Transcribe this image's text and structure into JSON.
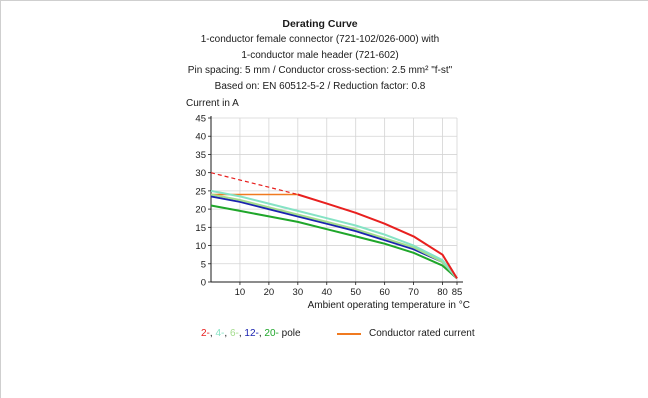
{
  "title": "Derating Curve",
  "subtitle_lines": [
    "1-conductor female connector (721-102/026-000) with",
    "1-conductor male header (721-602)",
    "Pin spacing: 5 mm / Conductor cross-section: 2.5 mm² \"f-st\"",
    "Based on: EN 60512-5-2 / Reduction factor: 0.8"
  ],
  "legend": {
    "pole_items": [
      {
        "text": "2-",
        "color": "#e8201f"
      },
      {
        "text": "4-",
        "color": "#86e3c5"
      },
      {
        "text": "6-",
        "color": "#a3dc8c"
      },
      {
        "text": "12-",
        "color": "#1a22b0"
      },
      {
        "text": "20-",
        "color": "#1fa62a"
      }
    ],
    "pole_suffix": "pole",
    "separator": ", ",
    "rated_label": "Conductor rated current",
    "rated_color": "#f07a20"
  },
  "chart_data": {
    "type": "line",
    "title": "Derating Curve",
    "xlabel": "Ambient operating temperature in °C",
    "ylabel": "Current in A",
    "xlim": [
      0,
      85
    ],
    "ylim": [
      0,
      45
    ],
    "xticks": [
      10,
      20,
      30,
      40,
      50,
      60,
      70,
      80,
      85
    ],
    "yticks": [
      0,
      5,
      10,
      15,
      20,
      25,
      30,
      35,
      40,
      45
    ],
    "grid": true,
    "series": [
      {
        "name": "2-pole",
        "color": "#e8201f",
        "x": [
          30,
          40,
          50,
          60,
          70,
          80,
          85
        ],
        "y": [
          24.0,
          21.5,
          19.0,
          16.0,
          12.5,
          7.5,
          1.0
        ],
        "dashed_prefix": {
          "x": [
            0,
            10,
            20,
            30
          ],
          "y": [
            30.0,
            28.0,
            26.0,
            24.0
          ]
        }
      },
      {
        "name": "4-pole",
        "color": "#86e3c5",
        "x": [
          0,
          10,
          20,
          30,
          40,
          50,
          60,
          70,
          80,
          85
        ],
        "y": [
          25.0,
          23.5,
          21.5,
          19.5,
          17.5,
          15.5,
          13.0,
          10.0,
          6.0,
          1.0
        ]
      },
      {
        "name": "6-pole",
        "color": "#a3dc8c",
        "x": [
          0,
          10,
          20,
          30,
          40,
          50,
          60,
          70,
          80,
          85
        ],
        "y": [
          24.0,
          22.5,
          20.5,
          18.5,
          16.5,
          14.5,
          12.0,
          9.5,
          5.5,
          1.0
        ]
      },
      {
        "name": "12-pole",
        "color": "#1a22b0",
        "x": [
          0,
          10,
          20,
          30,
          40,
          50,
          60,
          70,
          80,
          85
        ],
        "y": [
          23.5,
          22.0,
          20.0,
          18.0,
          16.0,
          14.0,
          11.5,
          9.0,
          5.5,
          1.0
        ]
      },
      {
        "name": "20-pole",
        "color": "#1fa62a",
        "x": [
          0,
          10,
          20,
          30,
          40,
          50,
          60,
          70,
          80,
          85
        ],
        "y": [
          21.0,
          19.5,
          18.0,
          16.5,
          14.5,
          12.5,
          10.5,
          8.0,
          4.5,
          1.0
        ]
      },
      {
        "name": "Conductor rated current",
        "color": "#f07a20",
        "x": [
          0,
          30
        ],
        "y": [
          24.0,
          24.0
        ]
      }
    ]
  }
}
